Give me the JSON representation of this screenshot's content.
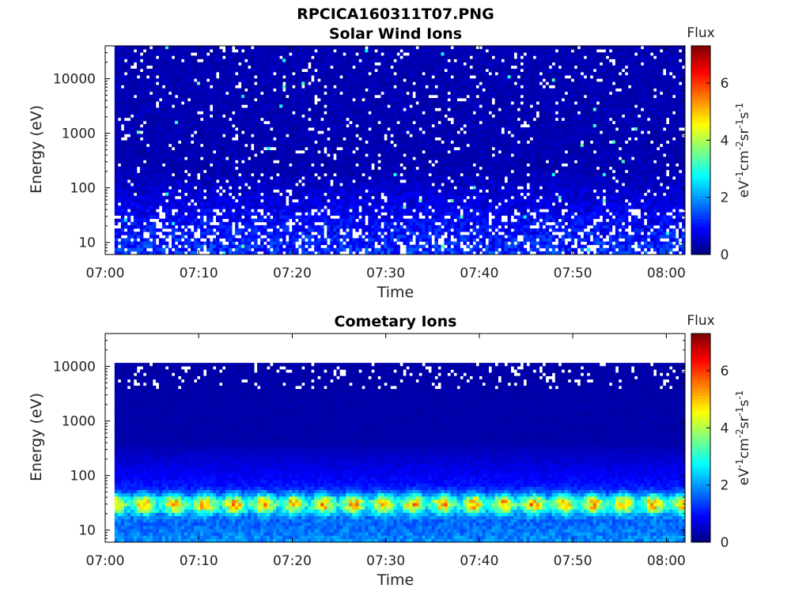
{
  "title": "RPCICA160311T07.PNG",
  "chart_data": [
    {
      "type": "heatmap",
      "title": "Solar Wind Ions",
      "xlabel": "Time",
      "ylabel": "Energy (eV)",
      "y_scale": "log",
      "ylim": [
        6,
        40000
      ],
      "xlim": [
        "07:00",
        "08:02"
      ],
      "x_ticks": [
        "07:00",
        "07:10",
        "07:20",
        "07:30",
        "07:40",
        "07:50",
        "08:00"
      ],
      "y_ticks": [
        "10",
        "100",
        "1000",
        "10000"
      ],
      "colorbar": {
        "title": "Flux",
        "label": "eV-1cm-2sr-1s-1",
        "range": [
          0,
          7.3
        ],
        "ticks": [
          "0",
          "2",
          "4",
          "6"
        ],
        "colormap": "jet"
      },
      "data_time_range": [
        "07:01",
        "08:02"
      ],
      "description_levels": {
        "high_energy_mean": 0.35,
        "low_energy_mean": 1.2,
        "max": 3.0
      }
    },
    {
      "type": "heatmap",
      "title": "Cometary Ions",
      "xlabel": "Time",
      "ylabel": "Energy (eV)",
      "y_scale": "log",
      "ylim": [
        6,
        40000
      ],
      "xlim": [
        "07:00",
        "08:02"
      ],
      "x_ticks": [
        "07:00",
        "07:10",
        "07:20",
        "07:30",
        "07:40",
        "07:50",
        "08:00"
      ],
      "y_ticks": [
        "10",
        "100",
        "1000",
        "10000"
      ],
      "colorbar": {
        "title": "Flux",
        "label": "eV-1cm-2sr-1s-1",
        "range": [
          0,
          7.3
        ],
        "ticks": [
          "0",
          "2",
          "4",
          "6"
        ],
        "colormap": "jet"
      },
      "data_time_range": [
        "07:01",
        "08:02"
      ],
      "peak_energy_eV": 30,
      "peak_flux": 5,
      "pulse_period_min": 3.2
    }
  ]
}
